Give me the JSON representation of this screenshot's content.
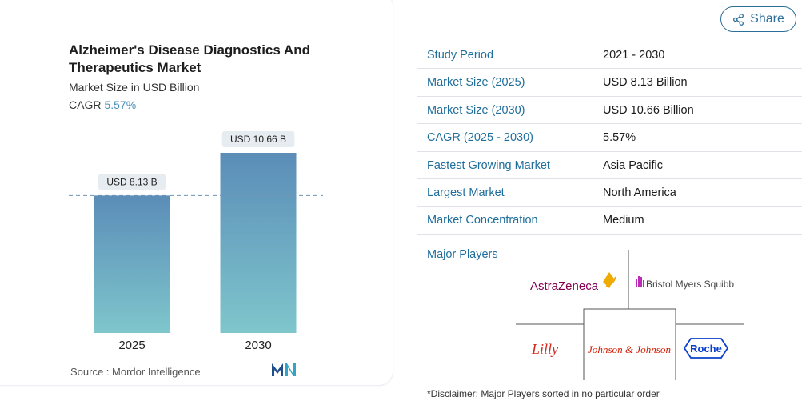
{
  "chart": {
    "title": "Alzheimer's Disease Diagnostics And Therapeutics Market",
    "subtitle": "Market Size in USD Billion",
    "cagr_label": "CAGR",
    "cagr_value": "5.57%",
    "source": "Source : Mordor Intelligence",
    "logo_text": "MI"
  },
  "chart_data": {
    "type": "bar",
    "categories": [
      "2025",
      "2030"
    ],
    "values": [
      8.13,
      10.66
    ],
    "data_labels": [
      "USD 8.13 B",
      "USD 10.66 B"
    ],
    "title": "Alzheimer's Disease Diagnostics And Therapeutics Market",
    "subtitle": "Market Size in USD Billion",
    "ylim": [
      0,
      10.66
    ],
    "grid": false,
    "reference_line": 8.13
  },
  "share": {
    "label": "Share"
  },
  "table": {
    "rows": [
      {
        "key": "Study Period",
        "value": "2021 - 2030"
      },
      {
        "key": "Market Size (2025)",
        "value": "USD 8.13 Billion"
      },
      {
        "key": "Market Size (2030)",
        "value": "USD 10.66 Billion"
      },
      {
        "key": "CAGR (2025 - 2030)",
        "value": "5.57%"
      },
      {
        "key": "Fastest Growing Market",
        "value": "Asia Pacific"
      },
      {
        "key": "Largest Market",
        "value": "North America"
      },
      {
        "key": "Market Concentration",
        "value": "Medium"
      }
    ]
  },
  "players": {
    "label": "Major Players",
    "list": [
      "AstraZeneca",
      "Bristol Myers Squibb",
      "Lilly",
      "Johnson & Johnson",
      "Roche"
    ],
    "disclaimer": "*Disclaimer: Major Players sorted in no particular order"
  },
  "colors": {
    "accent": "#1f6e9c",
    "bar_top": "#5b8db8",
    "bar_bottom": "#7fc6cc",
    "astrazeneca": "#830051",
    "lilly": "#d52b1e",
    "jnj": "#d51900",
    "roche": "#0b41cd"
  }
}
